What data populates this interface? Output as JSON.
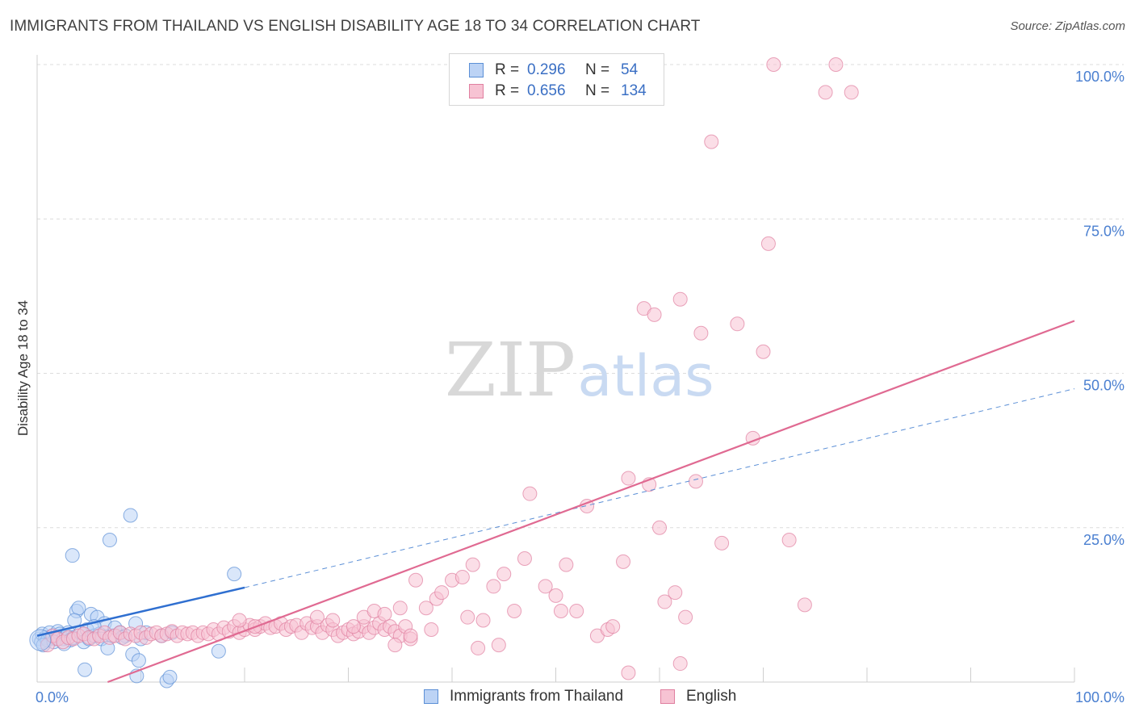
{
  "title": "IMMIGRANTS FROM THAILAND VS ENGLISH DISABILITY AGE 18 TO 34 CORRELATION CHART",
  "source": "Source: ZipAtlas.com",
  "watermark": {
    "zip": "ZIP",
    "atlas": "atlas"
  },
  "legend": {
    "rows": [
      {
        "r_label": "R =",
        "r_value": "0.296",
        "n_label": "N =",
        "n_value": "54",
        "color": "#5b8fd6",
        "fill": "#bcd3f5"
      },
      {
        "r_label": "R =",
        "r_value": "0.656",
        "n_label": "N =",
        "n_value": "134",
        "color": "#e07fa0",
        "fill": "#f7c3d3"
      }
    ]
  },
  "chart_data": {
    "type": "scatter",
    "title": "IMMIGRANTS FROM THAILAND VS ENGLISH DISABILITY AGE 18 TO 34 CORRELATION CHART",
    "xlabel": "",
    "ylabel": "Disability Age 18 to 34",
    "xlim": [
      0,
      100
    ],
    "ylim": [
      0,
      100
    ],
    "x_tick_labels": [
      "0.0%",
      "100.0%"
    ],
    "y_tick_labels": [
      "25.0%",
      "50.0%",
      "75.0%",
      "100.0%"
    ],
    "y_ticks": [
      25,
      50,
      75,
      100
    ],
    "grid": true,
    "legend_position": "bottom",
    "series": [
      {
        "name": "Immigrants from Thailand",
        "color": "#5b8fd6",
        "fill": "#bcd3f5",
        "trend": {
          "x0": 0,
          "y0": 7.5,
          "x1": 20,
          "y1": 15.3,
          "dashed_to_x": 100,
          "dashed_to_y": 47.5
        },
        "points": [
          [
            0.2,
            7.0
          ],
          [
            0.4,
            6.5
          ],
          [
            0.5,
            7.8
          ],
          [
            0.8,
            7.2
          ],
          [
            1.0,
            6.8
          ],
          [
            1.2,
            8.0
          ],
          [
            1.5,
            7.5
          ],
          [
            1.8,
            7.0
          ],
          [
            2.0,
            8.2
          ],
          [
            2.2,
            7.8
          ],
          [
            2.5,
            7.0
          ],
          [
            2.8,
            7.5
          ],
          [
            3.0,
            8.0
          ],
          [
            3.2,
            6.8
          ],
          [
            3.5,
            7.2
          ],
          [
            3.8,
            11.5
          ],
          [
            4.0,
            12.0
          ],
          [
            4.2,
            8.0
          ],
          [
            4.5,
            6.5
          ],
          [
            3.4,
            20.5
          ],
          [
            3.6,
            10.0
          ],
          [
            4.8,
            8.5
          ],
          [
            5.0,
            7.0
          ],
          [
            5.2,
            11.0
          ],
          [
            5.5,
            7.5
          ],
          [
            5.8,
            10.5
          ],
          [
            6.0,
            7.8
          ],
          [
            6.2,
            7.0
          ],
          [
            6.5,
            9.5
          ],
          [
            7.0,
            23.0
          ],
          [
            7.2,
            7.5
          ],
          [
            7.5,
            8.8
          ],
          [
            8.0,
            8.0
          ],
          [
            8.5,
            7.5
          ],
          [
            9.0,
            27.0
          ],
          [
            9.5,
            9.5
          ],
          [
            10.0,
            7.0
          ],
          [
            10.5,
            8.0
          ],
          [
            9.2,
            4.5
          ],
          [
            4.6,
            2.0
          ],
          [
            6.8,
            5.5
          ],
          [
            12.0,
            7.5
          ],
          [
            13.0,
            8.0
          ],
          [
            9.8,
            3.5
          ],
          [
            9.6,
            1.0
          ],
          [
            12.5,
            0.2
          ],
          [
            19.0,
            17.5
          ],
          [
            17.5,
            5.0
          ],
          [
            0.6,
            6.0
          ],
          [
            1.6,
            6.5
          ],
          [
            2.6,
            6.2
          ],
          [
            12.8,
            0.8
          ],
          [
            5.5,
            9.0
          ],
          [
            8.2,
            7.2
          ]
        ]
      },
      {
        "name": "English",
        "color": "#e07fa0",
        "fill": "#f7c3d3",
        "trend": {
          "x0": 6.8,
          "y0": 0,
          "x1": 100,
          "y1": 58.5
        },
        "points": [
          [
            1.0,
            6.0
          ],
          [
            1.5,
            7.5
          ],
          [
            2.0,
            7.0
          ],
          [
            2.5,
            6.5
          ],
          [
            3.0,
            7.2
          ],
          [
            3.5,
            7.0
          ],
          [
            4.0,
            7.5
          ],
          [
            4.5,
            7.8
          ],
          [
            5.0,
            7.2
          ],
          [
            5.5,
            7.0
          ],
          [
            6.0,
            7.5
          ],
          [
            6.5,
            8.0
          ],
          [
            7.0,
            7.2
          ],
          [
            7.5,
            7.5
          ],
          [
            8.0,
            8.0
          ],
          [
            8.5,
            7.0
          ],
          [
            9.0,
            7.8
          ],
          [
            9.5,
            7.5
          ],
          [
            10.0,
            8.0
          ],
          [
            10.5,
            7.2
          ],
          [
            11.0,
            7.8
          ],
          [
            11.5,
            8.0
          ],
          [
            12.0,
            7.5
          ],
          [
            12.5,
            7.8
          ],
          [
            13.0,
            8.2
          ],
          [
            13.5,
            7.5
          ],
          [
            14.0,
            8.0
          ],
          [
            14.5,
            7.8
          ],
          [
            15.0,
            8.0
          ],
          [
            15.5,
            7.5
          ],
          [
            16.0,
            8.0
          ],
          [
            16.5,
            7.8
          ],
          [
            17.0,
            8.5
          ],
          [
            17.5,
            7.8
          ],
          [
            18.0,
            8.8
          ],
          [
            18.5,
            8.2
          ],
          [
            19.0,
            9.0
          ],
          [
            19.5,
            8.0
          ],
          [
            20.0,
            8.5
          ],
          [
            20.5,
            9.2
          ],
          [
            21.0,
            8.5
          ],
          [
            21.5,
            9.0
          ],
          [
            22.0,
            9.5
          ],
          [
            22.5,
            8.8
          ],
          [
            23.0,
            9.0
          ],
          [
            23.5,
            9.5
          ],
          [
            24.0,
            8.5
          ],
          [
            24.5,
            9.0
          ],
          [
            25.0,
            9.2
          ],
          [
            25.5,
            8.0
          ],
          [
            26.0,
            9.5
          ],
          [
            26.5,
            8.8
          ],
          [
            27.0,
            9.0
          ],
          [
            27.5,
            8.0
          ],
          [
            28.0,
            9.2
          ],
          [
            28.5,
            8.5
          ],
          [
            29.0,
            7.5
          ],
          [
            29.5,
            8.0
          ],
          [
            30.0,
            8.5
          ],
          [
            30.5,
            7.8
          ],
          [
            31.0,
            8.2
          ],
          [
            31.5,
            9.0
          ],
          [
            32.0,
            8.0
          ],
          [
            32.5,
            8.8
          ],
          [
            33.0,
            9.5
          ],
          [
            33.5,
            8.5
          ],
          [
            34.0,
            9.0
          ],
          [
            34.5,
            8.2
          ],
          [
            35.0,
            7.5
          ],
          [
            35.5,
            9.0
          ],
          [
            36.0,
            7.0
          ],
          [
            19.5,
            10.0
          ],
          [
            21.0,
            9.0
          ],
          [
            27.0,
            10.5
          ],
          [
            28.5,
            10.0
          ],
          [
            30.5,
            9.0
          ],
          [
            31.5,
            10.5
          ],
          [
            32.5,
            11.5
          ],
          [
            33.5,
            11.0
          ],
          [
            35.0,
            12.0
          ],
          [
            36.5,
            16.5
          ],
          [
            37.5,
            12.0
          ],
          [
            38.5,
            13.5
          ],
          [
            39.0,
            14.5
          ],
          [
            40.0,
            16.5
          ],
          [
            41.0,
            17.0
          ],
          [
            41.5,
            10.5
          ],
          [
            42.0,
            19.0
          ],
          [
            43.0,
            10.0
          ],
          [
            44.0,
            15.5
          ],
          [
            45.0,
            17.5
          ],
          [
            46.0,
            11.5
          ],
          [
            47.0,
            20.0
          ],
          [
            47.5,
            30.5
          ],
          [
            49.0,
            15.5
          ],
          [
            50.0,
            14.0
          ],
          [
            50.5,
            11.5
          ],
          [
            51.0,
            19.0
          ],
          [
            52.0,
            11.5
          ],
          [
            53.0,
            28.5
          ],
          [
            54.0,
            7.5
          ],
          [
            55.0,
            8.5
          ],
          [
            55.5,
            9.0
          ],
          [
            56.5,
            19.5
          ],
          [
            57.0,
            33.0
          ],
          [
            58.5,
            60.5
          ],
          [
            59.5,
            59.5
          ],
          [
            59.0,
            32.0
          ],
          [
            60.0,
            25.0
          ],
          [
            60.5,
            13.0
          ],
          [
            61.5,
            14.5
          ],
          [
            62.0,
            62.0
          ],
          [
            62.5,
            10.5
          ],
          [
            63.5,
            32.5
          ],
          [
            64.0,
            56.5
          ],
          [
            65.0,
            87.5
          ],
          [
            66.0,
            22.5
          ],
          [
            67.5,
            58.0
          ],
          [
            69.0,
            39.5
          ],
          [
            70.0,
            53.5
          ],
          [
            70.5,
            71.0
          ],
          [
            71.0,
            100.0
          ],
          [
            72.5,
            23.0
          ],
          [
            74.0,
            12.5
          ],
          [
            76.0,
            95.5
          ],
          [
            77.0,
            100.0
          ],
          [
            78.5,
            95.5
          ],
          [
            34.5,
            6.0
          ],
          [
            42.5,
            5.5
          ],
          [
            44.5,
            6.0
          ],
          [
            57.0,
            1.5
          ],
          [
            62.0,
            3.0
          ],
          [
            36.0,
            7.5
          ],
          [
            38.0,
            8.5
          ]
        ]
      }
    ]
  }
}
